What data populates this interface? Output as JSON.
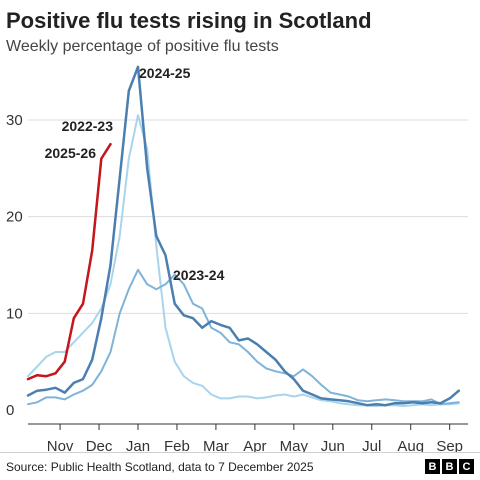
{
  "header": {
    "title": "Positive flu tests rising in Scotland",
    "subtitle": "Weekly percentage of positive flu tests"
  },
  "footer": {
    "source": "Source: Public Health Scotland, data to 7 December 2025",
    "logo_letters": [
      "B",
      "B",
      "C"
    ]
  },
  "chart_data": {
    "type": "line",
    "title": "Positive flu tests rising in Scotland",
    "subtitle": "Weekly percentage of positive flu tests",
    "xlabel": "",
    "ylabel": "",
    "x_ticks": [
      "Nov",
      "Dec",
      "Jan",
      "Feb",
      "Mar",
      "Apr",
      "May",
      "Jun",
      "Jul",
      "Aug",
      "Sep"
    ],
    "ylim": [
      0,
      36
    ],
    "y_ticks": [
      0,
      10,
      20,
      30
    ],
    "grid": "horizontal",
    "legend": "direct-labels",
    "colors": {
      "2024-25": "#4a7fb0",
      "2022-23": "#a8d4ec",
      "2025-26": "#c4161c",
      "2023-24": "#7fb3d8",
      "grid": "#dddddd",
      "axis": "#333333"
    },
    "x_domain": [
      0,
      48
    ],
    "series": [
      {
        "name": "2024-25",
        "x": [
          0,
          1,
          2,
          3,
          4,
          5,
          6,
          7,
          8,
          9,
          10,
          11,
          12,
          13,
          14,
          15,
          16,
          17,
          18,
          19,
          20,
          21,
          22,
          23,
          24,
          25,
          26,
          27,
          28,
          29,
          30,
          31,
          32,
          33,
          34,
          35,
          36,
          37,
          38,
          39,
          40,
          41,
          42,
          43,
          44,
          45,
          46,
          47
        ],
        "y": [
          1.5,
          2,
          2.1,
          2.3,
          1.8,
          2.8,
          3.2,
          5.2,
          9.5,
          15,
          24,
          33,
          35.5,
          25,
          18,
          16,
          11,
          9.8,
          9.5,
          8.5,
          9.2,
          8.8,
          8.5,
          7.2,
          7.4,
          6.8,
          6,
          5.2,
          4,
          3.2,
          2,
          1.6,
          1.2,
          1.1,
          1,
          0.9,
          0.7,
          0.5,
          0.6,
          0.5,
          0.7,
          0.7,
          0.8,
          0.7,
          0.8,
          0.7,
          1.2,
          2
        ]
      },
      {
        "name": "2022-23",
        "x": [
          0,
          1,
          2,
          3,
          4,
          5,
          6,
          7,
          8,
          9,
          10,
          11,
          12,
          13,
          14,
          15,
          16,
          17,
          18,
          19,
          20,
          21,
          22,
          23,
          24,
          25,
          26,
          27,
          28,
          29,
          30,
          31,
          32,
          33,
          34,
          35,
          36,
          37,
          38,
          39,
          40,
          41,
          42,
          43,
          44,
          45,
          46,
          47
        ],
        "y": [
          3.5,
          4.5,
          5.5,
          6,
          6,
          7,
          8,
          9,
          10.5,
          13,
          18,
          26,
          30.5,
          27,
          17,
          8.5,
          5,
          3.5,
          2.8,
          2.5,
          1.6,
          1.2,
          1.2,
          1.4,
          1.4,
          1.2,
          1.3,
          1.5,
          1.6,
          1.4,
          1.6,
          1.3,
          1,
          0.9,
          0.7,
          0.6,
          0.5,
          0.5,
          0.4,
          0.5,
          0.5,
          0.4,
          0.5,
          0.6,
          0.5,
          0.6,
          0.6,
          0.7
        ]
      },
      {
        "name": "2025-26",
        "x": [
          0,
          1,
          2,
          3,
          4,
          5,
          6,
          7,
          8,
          9,
          10
        ],
        "y": [
          3.2,
          3.6,
          3.5,
          3.8,
          5,
          9.5,
          11,
          16.5,
          26,
          27.5,
          null
        ]
      },
      {
        "name": "2023-24",
        "x": [
          0,
          1,
          2,
          3,
          4,
          5,
          6,
          7,
          8,
          9,
          10,
          11,
          12,
          13,
          14,
          15,
          16,
          17,
          18,
          19,
          20,
          21,
          22,
          23,
          24,
          25,
          26,
          27,
          28,
          29,
          30,
          31,
          32,
          33,
          34,
          35,
          36,
          37,
          38,
          39,
          40,
          41,
          42,
          43,
          44,
          45,
          46,
          47
        ],
        "y": [
          0.6,
          0.8,
          1.3,
          1.3,
          1.1,
          1.6,
          2,
          2.6,
          4,
          6,
          10,
          12.5,
          14.5,
          13,
          12.5,
          13,
          14,
          13,
          11,
          10.5,
          8.5,
          8,
          7,
          6.8,
          6,
          5,
          4.3,
          4,
          3.8,
          3.5,
          4.2,
          3.5,
          2.6,
          1.8,
          1.6,
          1.4,
          1,
          0.9,
          1,
          1.1,
          1,
          0.9,
          0.9,
          0.9,
          1.1,
          0.6,
          0.7,
          0.8
        ]
      }
    ]
  }
}
